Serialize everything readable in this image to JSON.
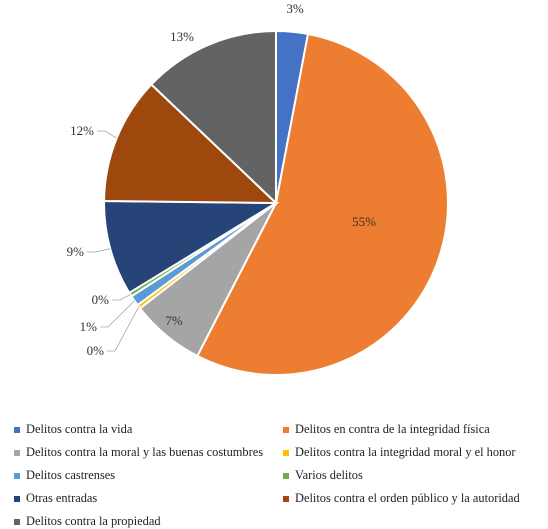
{
  "chart_data": {
    "type": "pie",
    "title": "",
    "series": [
      {
        "name": "Delitos contra la vida",
        "value": 3,
        "label": "3%",
        "color": "#4472C4"
      },
      {
        "name": "Delitos en contra de la integridad física",
        "value": 55,
        "label": "55%",
        "color": "#ED7D31"
      },
      {
        "name": "Delitos contra la moral y las buenas costumbres",
        "value": 7,
        "label": "7%",
        "color": "#A5A5A5"
      },
      {
        "name": "Delitos contra la integridad moral y el honor",
        "value": 0,
        "label": "0%",
        "color": "#FFC000"
      },
      {
        "name": "Delitos castrenses",
        "value": 1,
        "label": "1%",
        "color": "#5B9BD5"
      },
      {
        "name": "Varios delitos",
        "value": 0,
        "label": "0%",
        "color": "#70AD47"
      },
      {
        "name": "Otras entradas",
        "value": 9,
        "label": "9%",
        "color": "#264478"
      },
      {
        "name": "Delitos contra el orden público y la autoridad",
        "value": 12,
        "label": "12%",
        "color": "#9E480E"
      },
      {
        "name": "Delitos contra la propiedad",
        "value": 13,
        "label": "13%",
        "color": "#636363"
      }
    ],
    "legend_position": "bottom"
  }
}
